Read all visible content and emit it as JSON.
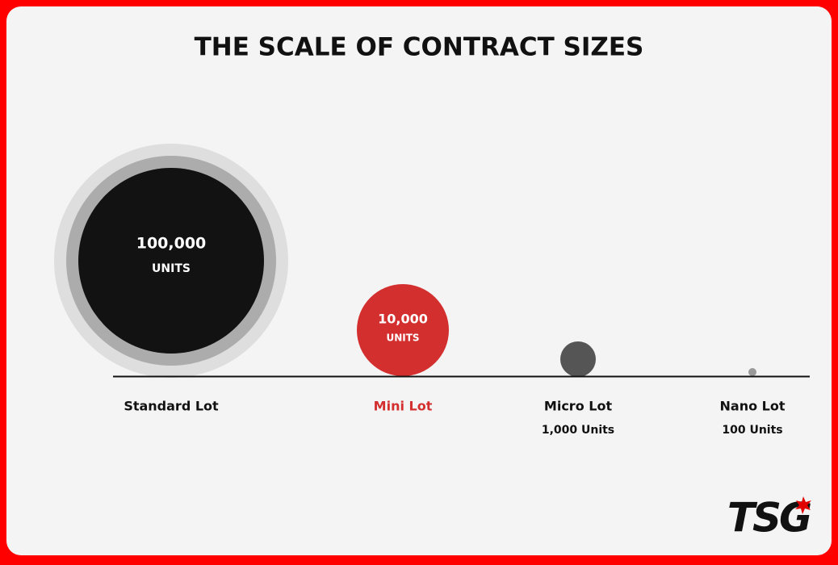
{
  "title": "THE SCALE OF CONTRACT SIZES",
  "lots": [
    {
      "name": "Standard Lot",
      "amount": "100,000",
      "unit": "UNITS"
    },
    {
      "name": "Mini Lot",
      "amount": "10,000",
      "unit": "UNITS"
    },
    {
      "name": "Micro Lot",
      "detail": "1,000 Units"
    },
    {
      "name": "Nano Lot",
      "detail": "100 Units"
    }
  ],
  "logo": "TSG"
}
